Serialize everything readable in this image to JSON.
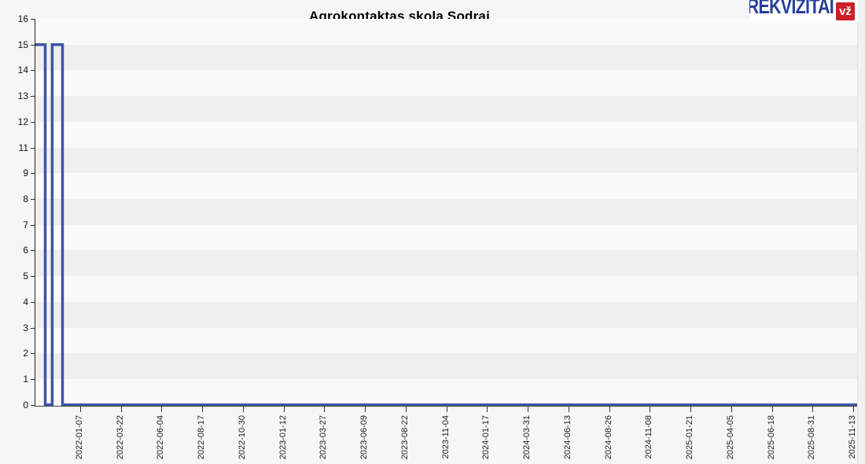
{
  "logo": {
    "text": "REKVIZITAI",
    "badge": "vž",
    "text_color": "#27409b",
    "badge_color": "#cb2127"
  },
  "chart_data": {
    "type": "line",
    "title": "Agrokontaktas skola Sodrai",
    "xlabel": "",
    "ylabel": "",
    "legend": "none",
    "grid": "horizontal-bands",
    "y_tick_labels": [
      "16",
      "15",
      "14",
      "13",
      "12",
      "11",
      "9",
      "8",
      "7",
      "6",
      "5",
      "4",
      "3",
      "2",
      "1",
      "0"
    ],
    "ylim": [
      0,
      16
    ],
    "x_tick_labels": [
      "2022-01-07",
      "2022-03-22",
      "2022-06-04",
      "2022-08-17",
      "2022-10-30",
      "2023-01-12",
      "2023-03-27",
      "2023-06-09",
      "2023-08-22",
      "2023-11-04",
      "2024-01-17",
      "2024-03-31",
      "2024-06-13",
      "2024-08-26",
      "2024-11-08",
      "2025-01-21",
      "2025-04-05",
      "2025-06-18",
      "2025-08-31",
      "2025-11-13"
    ],
    "series": [
      {
        "name": "Agrokontaktas skola Sodrai",
        "points_x_fraction_value": [
          [
            0.0,
            15
          ],
          [
            0.012,
            15
          ],
          [
            0.012,
            0
          ],
          [
            0.0205,
            0
          ],
          [
            0.0205,
            15
          ],
          [
            0.033,
            15
          ],
          [
            0.033,
            0
          ],
          [
            1.0,
            0
          ]
        ]
      }
    ],
    "line_color": "#3d55a6",
    "band_color_light": "#fafafa",
    "band_color_gray": "#efefef"
  }
}
